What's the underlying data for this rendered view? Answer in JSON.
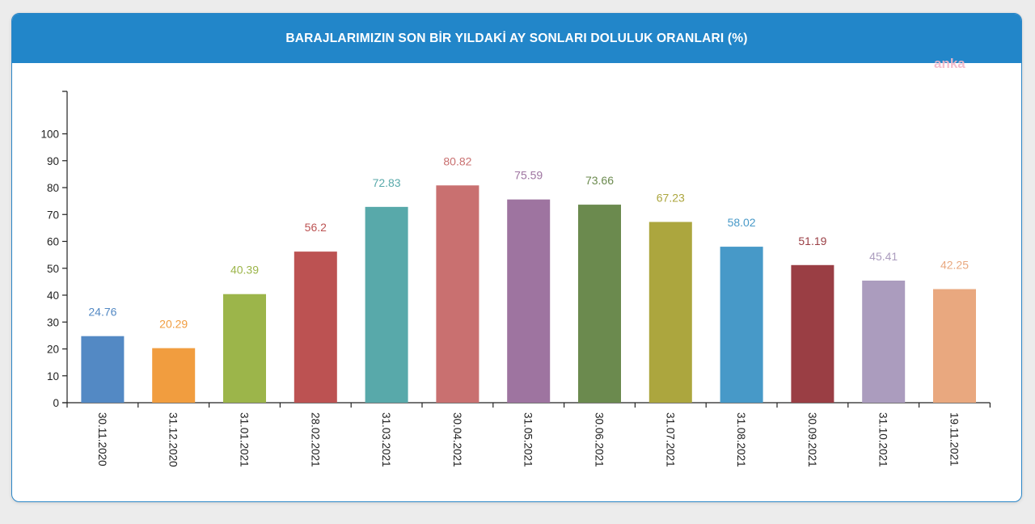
{
  "header": {
    "title": "BARAJLARIMIZIN SON BİR YILDAKİ AY SONLARI DOLULUK ORANLARI (%)"
  },
  "watermark": "anka",
  "colors": {
    "header": "#2286c9",
    "border": "#2b86c7"
  },
  "chart_data": {
    "type": "bar",
    "title": "BARAJLARIMIZIN SON BİR YILDAKİ AY SONLARI DOLULUK ORANLARI (%)",
    "xlabel": "",
    "ylabel": "",
    "ylim": [
      0,
      115
    ],
    "yticks": [
      0,
      10,
      20,
      30,
      40,
      50,
      60,
      70,
      80,
      90,
      100
    ],
    "grid": false,
    "legend": "none",
    "categories": [
      "30.11.2020",
      "31.12.2020",
      "31.01.2021",
      "28.02.2021",
      "31.03.2021",
      "30.04.2021",
      "31.05.2021",
      "30.06.2021",
      "31.07.2021",
      "31.08.2021",
      "30.09.2021",
      "31.10.2021",
      "19.11.2021"
    ],
    "values": [
      24.76,
      20.29,
      40.39,
      56.2,
      72.83,
      80.82,
      75.59,
      73.66,
      67.23,
      58.02,
      51.19,
      45.41,
      42.25
    ],
    "value_labels": [
      "24.76",
      "20.29",
      "40.39",
      "56.2",
      "72.83",
      "80.82",
      "75.59",
      "73.66",
      "67.23",
      "58.02",
      "51.19",
      "45.41",
      "42.25"
    ],
    "bar_colors": [
      "#5389c4",
      "#f19d3f",
      "#9cb54a",
      "#bc5252",
      "#58a9aa",
      "#c97070",
      "#9e74a0",
      "#6b8a4e",
      "#aca63e",
      "#4799c8",
      "#9a3e44",
      "#ab9cbe",
      "#e9a87f"
    ],
    "label_colors": [
      "#5389c4",
      "#f19d3f",
      "#9cb54a",
      "#bc5252",
      "#58a9aa",
      "#c97070",
      "#9e74a0",
      "#6b8a4e",
      "#aca63e",
      "#4799c8",
      "#9a3e44",
      "#ab9cbe",
      "#e9a87f"
    ]
  }
}
